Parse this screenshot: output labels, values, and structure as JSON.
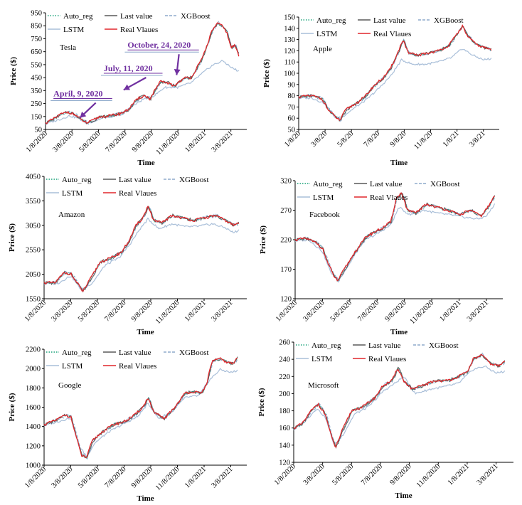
{
  "legend": {
    "entries": [
      {
        "label": "Auto_reg",
        "color": "#1aa37a",
        "style": "dotted"
      },
      {
        "label": "Last value",
        "color": "#595959",
        "style": "solid"
      },
      {
        "label": "XGBoost",
        "color": "#8eaacb",
        "style": "dashed"
      },
      {
        "label": "LSTM",
        "color": "#a9bfd9",
        "style": "solid"
      },
      {
        "label": "Real Vlaues",
        "color": "#e0262b",
        "style": "solid"
      }
    ]
  },
  "chart_data": [
    {
      "type": "line",
      "company": "Tesla",
      "xlabel": "Time",
      "ylabel": "Price ($)",
      "categories": [
        "1/8/2020",
        "3/8/2020",
        "5/8/2020",
        "7/8/2020",
        "9/8/2020",
        "11/8/2020",
        "1/8/2021",
        "3/8/2021"
      ],
      "ylim": [
        50,
        950
      ],
      "yticks": [
        50,
        150,
        250,
        350,
        450,
        550,
        650,
        750,
        850,
        950
      ],
      "real": [
        [
          0,
          100
        ],
        [
          0.3,
          130
        ],
        [
          0.55,
          165
        ],
        [
          0.85,
          185
        ],
        [
          1.1,
          165
        ],
        [
          1.35,
          125
        ],
        [
          1.55,
          100
        ],
        [
          1.75,
          115
        ],
        [
          2.0,
          145
        ],
        [
          2.4,
          155
        ],
        [
          2.8,
          170
        ],
        [
          3.1,
          200
        ],
        [
          3.35,
          260
        ],
        [
          3.55,
          295
        ],
        [
          3.75,
          310
        ],
        [
          3.95,
          285
        ],
        [
          4.15,
          360
        ],
        [
          4.35,
          420
        ],
        [
          4.6,
          410
        ],
        [
          4.85,
          385
        ],
        [
          5.05,
          420
        ],
        [
          5.3,
          450
        ],
        [
          5.5,
          450
        ],
        [
          5.7,
          520
        ],
        [
          5.9,
          590
        ],
        [
          6.1,
          700
        ],
        [
          6.3,
          820
        ],
        [
          6.5,
          870
        ],
        [
          6.65,
          850
        ],
        [
          6.85,
          800
        ],
        [
          7.0,
          680
        ],
        [
          7.15,
          700
        ],
        [
          7.3,
          620
        ]
      ],
      "lstm": [
        [
          0,
          95
        ],
        [
          0.5,
          125
        ],
        [
          0.9,
          155
        ],
        [
          1.2,
          140
        ],
        [
          1.5,
          105
        ],
        [
          1.8,
          110
        ],
        [
          2.2,
          140
        ],
        [
          2.8,
          160
        ],
        [
          3.3,
          230
        ],
        [
          3.7,
          285
        ],
        [
          4.1,
          310
        ],
        [
          4.5,
          375
        ],
        [
          5.0,
          375
        ],
        [
          5.5,
          410
        ],
        [
          5.9,
          480
        ],
        [
          6.3,
          545
        ],
        [
          6.7,
          580
        ],
        [
          7.0,
          530
        ],
        [
          7.3,
          500
        ]
      ],
      "annotations": [
        {
          "text": "April, 9, 2020",
          "x": 0.3,
          "y": 305,
          "ax": 1.3,
          "ay": 140
        },
        {
          "text": "July, 11, 2020",
          "x": 2.2,
          "y": 500,
          "ax": 2.95,
          "ay": 355
        },
        {
          "text": "October, 24, 2020",
          "x": 3.1,
          "y": 680,
          "ax": 4.95,
          "ay": 470
        }
      ]
    },
    {
      "type": "line",
      "company": "Apple",
      "xlabel": "Time",
      "ylabel": "Price ($)",
      "categories": [
        "1/8/20",
        "3/8/20",
        "5/8/20",
        "7/8/20",
        "9/8/20",
        "11/8/20",
        "1/8/21",
        "3/8/21"
      ],
      "ylim": [
        50,
        150
      ],
      "yticks": [
        50,
        60,
        70,
        80,
        90,
        100,
        110,
        120,
        130,
        140,
        150
      ],
      "real": [
        [
          0,
          79
        ],
        [
          0.5,
          80
        ],
        [
          0.9,
          77
        ],
        [
          1.1,
          68
        ],
        [
          1.35,
          62
        ],
        [
          1.55,
          58
        ],
        [
          1.8,
          68
        ],
        [
          2.1,
          72
        ],
        [
          2.5,
          79
        ],
        [
          2.9,
          90
        ],
        [
          3.2,
          96
        ],
        [
          3.45,
          103
        ],
        [
          3.7,
          115
        ],
        [
          3.95,
          130
        ],
        [
          4.15,
          118
        ],
        [
          4.5,
          116
        ],
        [
          4.9,
          118
        ],
        [
          5.3,
          120
        ],
        [
          5.7,
          125
        ],
        [
          6.0,
          135
        ],
        [
          6.2,
          142
        ],
        [
          6.4,
          133
        ],
        [
          6.7,
          126
        ],
        [
          7.0,
          123
        ],
        [
          7.3,
          121
        ]
      ],
      "lstm": [
        [
          0,
          78
        ],
        [
          0.5,
          78
        ],
        [
          1.0,
          73
        ],
        [
          1.4,
          60
        ],
        [
          1.7,
          62
        ],
        [
          2.1,
          69
        ],
        [
          2.6,
          77
        ],
        [
          3.1,
          88
        ],
        [
          3.5,
          98
        ],
        [
          3.9,
          112
        ],
        [
          4.3,
          108
        ],
        [
          4.8,
          108
        ],
        [
          5.3,
          110
        ],
        [
          5.8,
          114
        ],
        [
          6.2,
          122
        ],
        [
          6.6,
          116
        ],
        [
          7.0,
          112
        ],
        [
          7.3,
          113
        ]
      ]
    },
    {
      "type": "line",
      "company": "Amazon",
      "xlabel": "Time",
      "ylabel": "Price ($)",
      "categories": [
        "1/8/2020",
        "3/8/2020",
        "5/8/2020",
        "7/8/2020",
        "9/8/2020",
        "11/8/2020",
        "1/8/2021",
        "3/8/2021"
      ],
      "ylim": [
        1550,
        4050
      ],
      "yticks": [
        1550,
        2050,
        2550,
        3050,
        3550,
        4050
      ],
      "real": [
        [
          0,
          1880
        ],
        [
          0.4,
          1870
        ],
        [
          0.75,
          2080
        ],
        [
          1.0,
          2060
        ],
        [
          1.2,
          1900
        ],
        [
          1.45,
          1700
        ],
        [
          1.7,
          1920
        ],
        [
          2.1,
          2300
        ],
        [
          2.5,
          2380
        ],
        [
          2.9,
          2500
        ],
        [
          3.2,
          2750
        ],
        [
          3.45,
          3050
        ],
        [
          3.7,
          3200
        ],
        [
          3.9,
          3450
        ],
        [
          4.1,
          3150
        ],
        [
          4.4,
          3100
        ],
        [
          4.8,
          3250
        ],
        [
          5.2,
          3200
        ],
        [
          5.6,
          3150
        ],
        [
          6.0,
          3200
        ],
        [
          6.4,
          3250
        ],
        [
          6.8,
          3150
        ],
        [
          7.1,
          3050
        ],
        [
          7.3,
          3100
        ]
      ],
      "lstm": [
        [
          0,
          1860
        ],
        [
          0.5,
          1860
        ],
        [
          1.0,
          2020
        ],
        [
          1.4,
          1730
        ],
        [
          1.8,
          1870
        ],
        [
          2.3,
          2240
        ],
        [
          2.8,
          2380
        ],
        [
          3.2,
          2650
        ],
        [
          3.6,
          2980
        ],
        [
          3.9,
          3180
        ],
        [
          4.3,
          2980
        ],
        [
          4.8,
          3080
        ],
        [
          5.3,
          3020
        ],
        [
          5.8,
          3030
        ],
        [
          6.3,
          3080
        ],
        [
          6.8,
          3000
        ],
        [
          7.1,
          2900
        ],
        [
          7.3,
          2950
        ]
      ]
    },
    {
      "type": "line",
      "company": "Facebook",
      "xlabel": "Time",
      "ylabel": "Price ($)",
      "categories": [
        "1/8/2020",
        "3/8/2020",
        "5/8/2020",
        "7/8/2020",
        "9/8/2020",
        "11/8/2020",
        "1/8/2021",
        "3/8/2021"
      ],
      "ylim": [
        120,
        320
      ],
      "yticks": [
        120,
        170,
        220,
        270,
        320
      ],
      "real": [
        [
          0,
          220
        ],
        [
          0.4,
          222
        ],
        [
          0.8,
          214
        ],
        [
          1.0,
          205
        ],
        [
          1.2,
          180
        ],
        [
          1.4,
          160
        ],
        [
          1.55,
          150
        ],
        [
          1.8,
          170
        ],
        [
          2.2,
          200
        ],
        [
          2.6,
          225
        ],
        [
          2.9,
          233
        ],
        [
          3.2,
          240
        ],
        [
          3.5,
          250
        ],
        [
          3.7,
          290
        ],
        [
          3.9,
          300
        ],
        [
          4.1,
          270
        ],
        [
          4.4,
          265
        ],
        [
          4.8,
          280
        ],
        [
          5.2,
          275
        ],
        [
          5.6,
          270
        ],
        [
          6.0,
          262
        ],
        [
          6.4,
          270
        ],
        [
          6.8,
          260
        ],
        [
          7.1,
          278
        ],
        [
          7.3,
          295
        ]
      ],
      "lstm": [
        [
          0,
          218
        ],
        [
          0.5,
          220
        ],
        [
          1.0,
          200
        ],
        [
          1.3,
          165
        ],
        [
          1.6,
          152
        ],
        [
          2.0,
          180
        ],
        [
          2.5,
          218
        ],
        [
          3.0,
          230
        ],
        [
          3.5,
          245
        ],
        [
          3.8,
          275
        ],
        [
          4.2,
          262
        ],
        [
          4.7,
          270
        ],
        [
          5.2,
          265
        ],
        [
          5.7,
          262
        ],
        [
          6.2,
          258
        ],
        [
          6.7,
          255
        ],
        [
          7.0,
          260
        ],
        [
          7.3,
          280
        ]
      ]
    },
    {
      "type": "line",
      "company": "Google",
      "xlabel": "Time",
      "ylabel": "Price ($)",
      "categories": [
        "1/8/2020",
        "3/8/2020",
        "5/8/2020",
        "7/8/2020",
        "9/8/2020",
        "11/8/2020",
        "1/8/2021",
        "3/8/2021"
      ],
      "ylim": [
        1000,
        2200
      ],
      "yticks": [
        1000,
        1200,
        1400,
        1600,
        1800,
        2000,
        2200
      ],
      "real": [
        [
          0,
          1420
        ],
        [
          0.4,
          1460
        ],
        [
          0.8,
          1520
        ],
        [
          1.0,
          1500
        ],
        [
          1.2,
          1300
        ],
        [
          1.4,
          1100
        ],
        [
          1.6,
          1080
        ],
        [
          1.8,
          1250
        ],
        [
          2.2,
          1350
        ],
        [
          2.6,
          1420
        ],
        [
          3.0,
          1450
        ],
        [
          3.4,
          1520
        ],
        [
          3.7,
          1600
        ],
        [
          3.9,
          1700
        ],
        [
          4.1,
          1550
        ],
        [
          4.5,
          1480
        ],
        [
          4.9,
          1600
        ],
        [
          5.3,
          1750
        ],
        [
          5.6,
          1760
        ],
        [
          5.9,
          1740
        ],
        [
          6.1,
          1850
        ],
        [
          6.3,
          2080
        ],
        [
          6.6,
          2100
        ],
        [
          6.9,
          2060
        ],
        [
          7.1,
          2050
        ],
        [
          7.25,
          2120
        ]
      ],
      "lstm": [
        [
          0,
          1410
        ],
        [
          0.5,
          1450
        ],
        [
          1.0,
          1490
        ],
        [
          1.3,
          1200
        ],
        [
          1.6,
          1090
        ],
        [
          1.9,
          1230
        ],
        [
          2.4,
          1340
        ],
        [
          3.0,
          1430
        ],
        [
          3.5,
          1500
        ],
        [
          3.9,
          1640
        ],
        [
          4.3,
          1480
        ],
        [
          4.8,
          1560
        ],
        [
          5.3,
          1700
        ],
        [
          5.8,
          1720
        ],
        [
          6.2,
          1880
        ],
        [
          6.6,
          1990
        ],
        [
          7.0,
          1960
        ],
        [
          7.25,
          1980
        ]
      ]
    },
    {
      "type": "line",
      "company": "Microsoft",
      "xlabel": "Time",
      "ylabel": "Price ($)",
      "categories": [
        "1/8/2020",
        "3/8/2020",
        "5/8/2020",
        "7/8/2020",
        "9/8/2020",
        "11/8/2020",
        "1/8/2021",
        "3/8/2021"
      ],
      "ylim": [
        120,
        260
      ],
      "yticks": [
        120,
        140,
        160,
        180,
        200,
        220,
        240,
        260
      ],
      "real": [
        [
          0,
          160
        ],
        [
          0.3,
          165
        ],
        [
          0.6,
          180
        ],
        [
          0.85,
          188
        ],
        [
          1.1,
          175
        ],
        [
          1.3,
          150
        ],
        [
          1.45,
          137
        ],
        [
          1.65,
          155
        ],
        [
          2.0,
          180
        ],
        [
          2.4,
          185
        ],
        [
          2.8,
          195
        ],
        [
          3.1,
          210
        ],
        [
          3.4,
          215
        ],
        [
          3.6,
          230
        ],
        [
          3.8,
          215
        ],
        [
          4.1,
          205
        ],
        [
          4.5,
          210
        ],
        [
          4.9,
          215
        ],
        [
          5.3,
          215
        ],
        [
          5.7,
          220
        ],
        [
          6.0,
          225
        ],
        [
          6.2,
          240
        ],
        [
          6.5,
          245
        ],
        [
          6.8,
          235
        ],
        [
          7.1,
          232
        ],
        [
          7.3,
          238
        ]
      ],
      "lstm": [
        [
          0,
          158
        ],
        [
          0.4,
          168
        ],
        [
          0.8,
          183
        ],
        [
          1.1,
          172
        ],
        [
          1.4,
          140
        ],
        [
          1.7,
          152
        ],
        [
          2.1,
          176
        ],
        [
          2.6,
          185
        ],
        [
          3.1,
          203
        ],
        [
          3.5,
          212
        ],
        [
          3.8,
          220
        ],
        [
          4.2,
          200
        ],
        [
          4.7,
          205
        ],
        [
          5.2,
          208
        ],
        [
          5.7,
          212
        ],
        [
          6.2,
          228
        ],
        [
          6.6,
          232
        ],
        [
          7.0,
          224
        ],
        [
          7.3,
          226
        ]
      ]
    }
  ]
}
